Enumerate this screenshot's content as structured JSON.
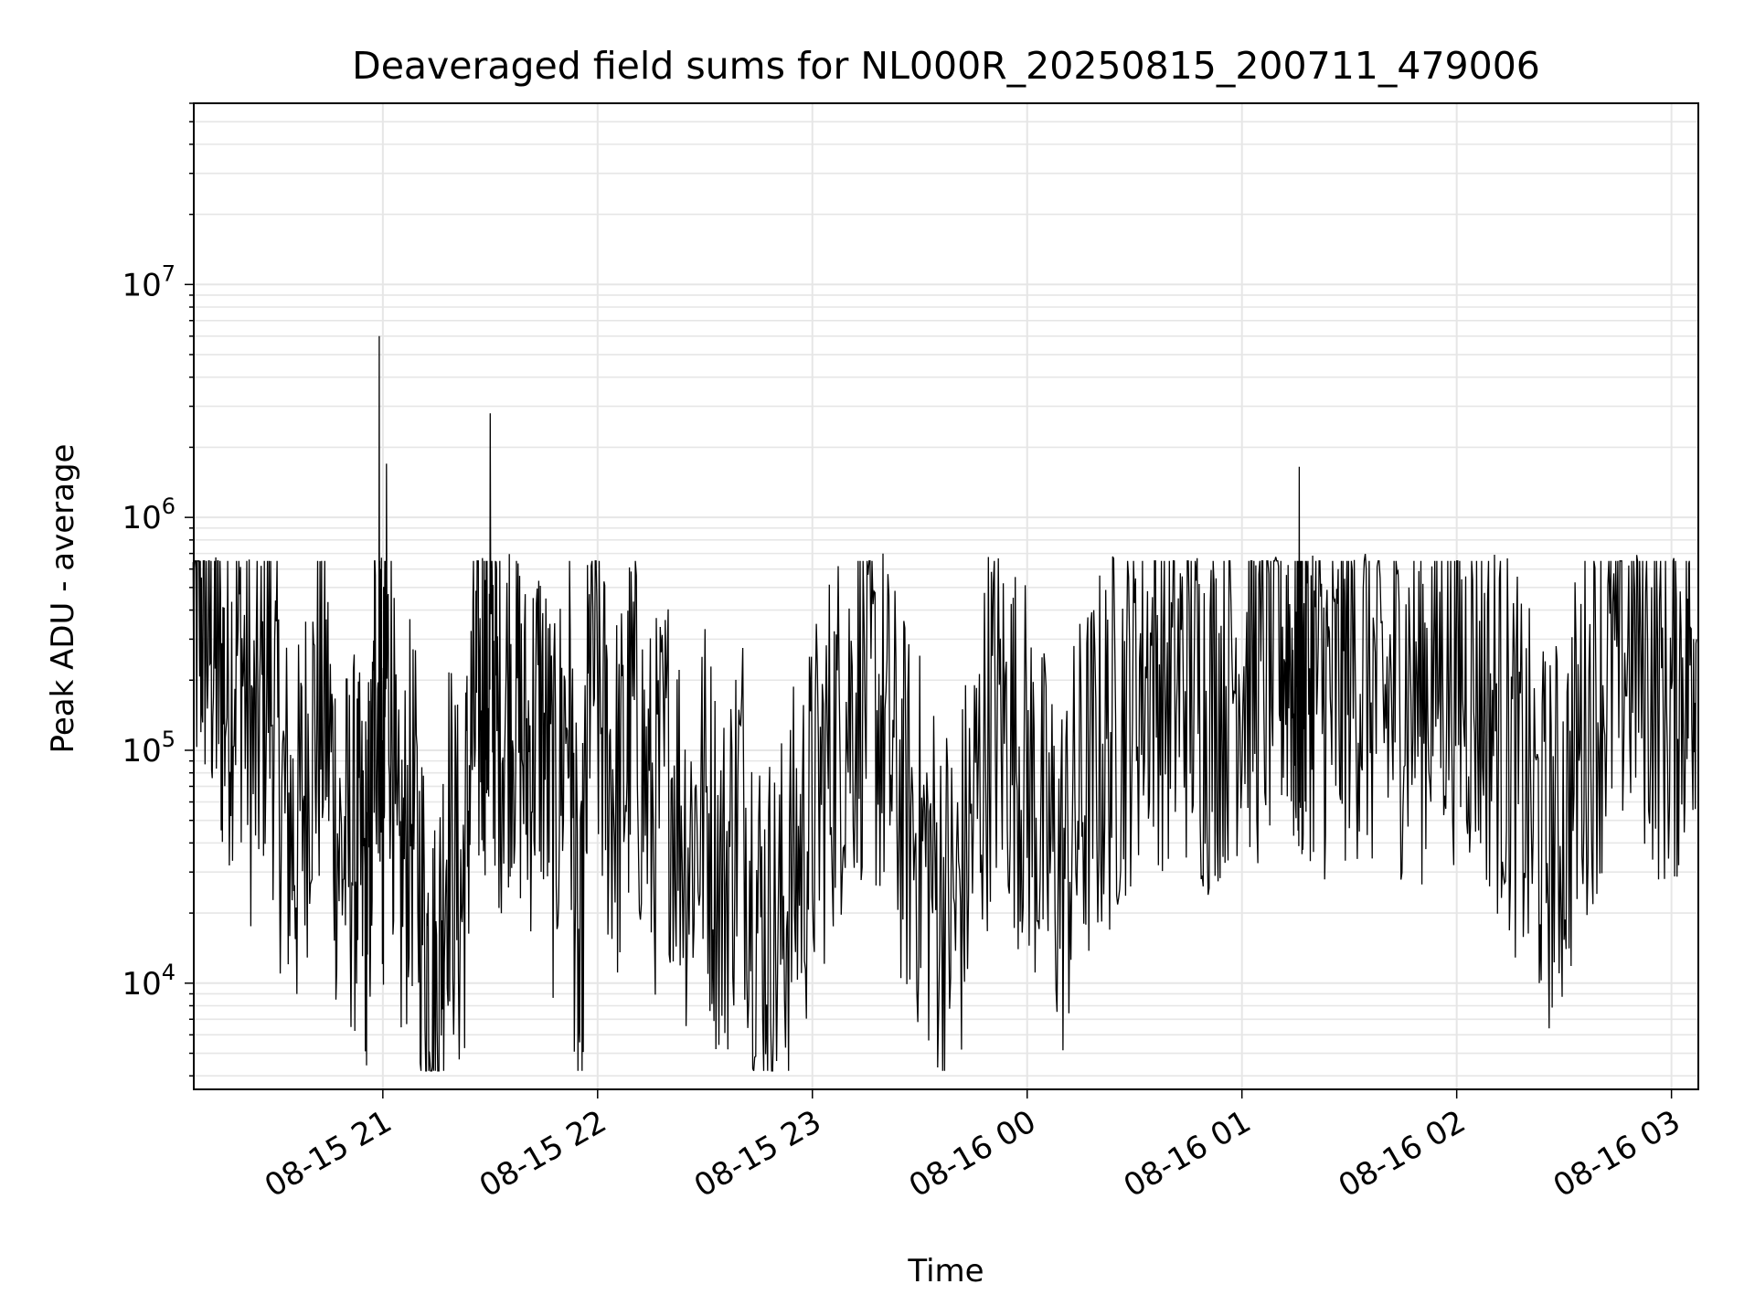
{
  "chart_data": {
    "type": "line",
    "title": "Deaveraged field sums for NL000R_20250815_200711_479006",
    "xlabel": "Time",
    "ylabel": "Peak ADU - average",
    "y_scale": "log",
    "ylim": [
      3500,
      60000000
    ],
    "xlim": [
      "2025-08-15 20:07:11",
      "2025-08-16 03:07:30"
    ],
    "grid": true,
    "line_color": "#000000",
    "x_tick_labels": [
      "08-15 21",
      "08-15 22",
      "08-15 23",
      "08-16 00",
      "08-16 01",
      "08-16 02",
      "08-16 03"
    ],
    "x_ticks": [
      "2025-08-15 21:00",
      "2025-08-15 22:00",
      "2025-08-15 23:00",
      "2025-08-16 00:00",
      "2025-08-16 01:00",
      "2025-08-16 02:00",
      "2025-08-16 03:00"
    ],
    "y_tick_labels": [
      {
        "base": "10",
        "exp": "4",
        "value": 10000
      },
      {
        "base": "10",
        "exp": "5",
        "value": 100000
      },
      {
        "base": "10",
        "exp": "6",
        "value": 1000000
      },
      {
        "base": "10",
        "exp": "7",
        "value": 10000000
      }
    ],
    "series": [
      {
        "points": [
          [
            "2025-08-15 20:07",
            350000
          ],
          [
            "2025-08-15 20:10",
            420000
          ],
          [
            "2025-08-15 20:13",
            260000
          ],
          [
            "2025-08-15 20:16",
            180000
          ],
          [
            "2025-08-15 20:20",
            300000
          ],
          [
            "2025-08-15 20:24",
            90000
          ],
          [
            "2025-08-15 20:28",
            250000
          ],
          [
            "2025-08-15 20:32",
            60000
          ],
          [
            "2025-08-15 20:36",
            40000
          ],
          [
            "2025-08-15 20:40",
            120000
          ],
          [
            "2025-08-15 20:44",
            160000
          ],
          [
            "2025-08-15 20:48",
            35000
          ],
          [
            "2025-08-15 20:52",
            40000
          ],
          [
            "2025-08-15 20:55",
            25000
          ],
          [
            "2025-08-15 20:57",
            45000
          ],
          [
            "2025-08-15 20:59",
            6000000
          ],
          [
            "2025-08-15 21:00",
            30000
          ],
          [
            "2025-08-15 21:01",
            1700000
          ],
          [
            "2025-08-15 21:04",
            20000
          ],
          [
            "2025-08-15 21:08",
            60000
          ],
          [
            "2025-08-15 21:12",
            15000
          ],
          [
            "2025-08-15 21:15",
            8000
          ],
          [
            "2025-08-15 21:18",
            50000
          ],
          [
            "2025-08-15 21:22",
            20000
          ],
          [
            "2025-08-15 21:25",
            120000
          ],
          [
            "2025-08-15 21:28",
            180000
          ],
          [
            "2025-08-15 21:30",
            2800000
          ],
          [
            "2025-08-15 21:32",
            120000
          ],
          [
            "2025-08-15 21:36",
            200000
          ],
          [
            "2025-08-15 21:40",
            90000
          ],
          [
            "2025-08-15 21:44",
            150000
          ],
          [
            "2025-08-15 21:48",
            50000
          ],
          [
            "2025-08-15 21:52",
            200000
          ],
          [
            "2025-08-15 21:55",
            6000
          ],
          [
            "2025-08-15 21:58",
            300000
          ],
          [
            "2025-08-15 22:02",
            100000
          ],
          [
            "2025-08-15 22:06",
            60000
          ],
          [
            "2025-08-15 22:10",
            150000
          ],
          [
            "2025-08-15 22:15",
            50000
          ],
          [
            "2025-08-15 22:20",
            90000
          ],
          [
            "2025-08-15 22:25",
            40000
          ],
          [
            "2025-08-15 22:30",
            60000
          ],
          [
            "2025-08-15 22:35",
            25000
          ],
          [
            "2025-08-15 22:40",
            70000
          ],
          [
            "2025-08-15 22:45",
            20000
          ],
          [
            "2025-08-15 22:50",
            15000
          ],
          [
            "2025-08-15 22:55",
            30000
          ],
          [
            "2025-08-15 23:00",
            50000
          ],
          [
            "2025-08-15 23:05",
            100000
          ],
          [
            "2025-08-15 23:10",
            150000
          ],
          [
            "2025-08-15 23:15",
            200000
          ],
          [
            "2025-08-15 23:20",
            120000
          ],
          [
            "2025-08-15 23:25",
            60000
          ],
          [
            "2025-08-15 23:30",
            40000
          ],
          [
            "2025-08-15 23:35",
            25000
          ],
          [
            "2025-08-15 23:40",
            20000
          ],
          [
            "2025-08-15 23:45",
            50000
          ],
          [
            "2025-08-15 23:50",
            150000
          ],
          [
            "2025-08-15 23:55",
            120000
          ],
          [
            "2025-08-16 00:00",
            80000
          ],
          [
            "2025-08-16 00:05",
            40000
          ],
          [
            "2025-08-16 00:10",
            30000
          ],
          [
            "2025-08-16 00:15",
            60000
          ],
          [
            "2025-08-16 00:20",
            90000
          ],
          [
            "2025-08-16 00:25",
            120000
          ],
          [
            "2025-08-16 00:30",
            200000
          ],
          [
            "2025-08-16 00:35",
            250000
          ],
          [
            "2025-08-16 00:40",
            180000
          ],
          [
            "2025-08-16 00:45",
            220000
          ],
          [
            "2025-08-16 00:50",
            150000
          ],
          [
            "2025-08-16 00:55",
            200000
          ],
          [
            "2025-08-16 01:00",
            250000
          ],
          [
            "2025-08-16 01:05",
            200000
          ],
          [
            "2025-08-16 01:10",
            280000
          ],
          [
            "2025-08-16 01:14",
            300000
          ],
          [
            "2025-08-16 01:16",
            1650000
          ],
          [
            "2025-08-16 01:18",
            250000
          ],
          [
            "2025-08-16 01:22",
            200000
          ],
          [
            "2025-08-16 01:26",
            150000
          ],
          [
            "2025-08-16 01:30",
            250000
          ],
          [
            "2025-08-16 01:35",
            200000
          ],
          [
            "2025-08-16 01:40",
            150000
          ],
          [
            "2025-08-16 01:45",
            200000
          ],
          [
            "2025-08-16 01:50",
            180000
          ],
          [
            "2025-08-16 01:55",
            250000
          ],
          [
            "2025-08-16 02:00",
            220000
          ],
          [
            "2025-08-16 02:05",
            200000
          ],
          [
            "2025-08-16 02:10",
            150000
          ],
          [
            "2025-08-16 02:15",
            100000
          ],
          [
            "2025-08-16 02:20",
            60000
          ],
          [
            "2025-08-16 02:25",
            40000
          ],
          [
            "2025-08-16 02:30",
            50000
          ],
          [
            "2025-08-16 02:35",
            120000
          ],
          [
            "2025-08-16 02:40",
            180000
          ],
          [
            "2025-08-16 02:45",
            250000
          ],
          [
            "2025-08-16 02:50",
            300000
          ],
          [
            "2025-08-16 02:55",
            200000
          ],
          [
            "2025-08-16 03:00",
            150000
          ],
          [
            "2025-08-16 03:04",
            250000
          ],
          [
            "2025-08-16 03:07",
            300000
          ]
        ]
      }
    ]
  }
}
